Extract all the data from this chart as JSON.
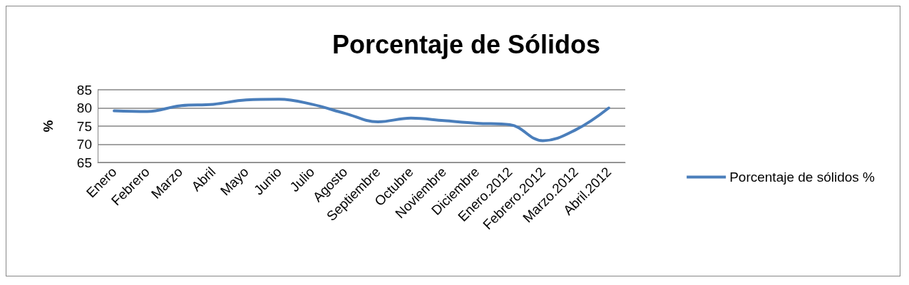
{
  "chart_data": {
    "type": "line",
    "title": "Porcentaje de Sólidos",
    "ylabel": "%",
    "categories": [
      "Enero",
      "Febrero",
      "Marzo",
      "Abril",
      "Mayo",
      "Junio",
      "Julio",
      "Agosto",
      "Septiembre",
      "Octubre",
      "Noviembre",
      "Diciembre",
      "Enero.2012",
      "Febrero.2012",
      "Marzo.2012",
      "Abril.2012"
    ],
    "series": [
      {
        "name": "Porcentaje de sólidos %",
        "color": "#4a7ebb",
        "values": [
          79.2,
          79.0,
          80.6,
          81.0,
          82.2,
          82.4,
          81.0,
          78.5,
          76.2,
          77.2,
          76.5,
          75.8,
          75.4,
          71.0,
          74.0,
          80.0
        ]
      }
    ],
    "ylim": [
      65,
      85
    ],
    "yticks": [
      65,
      70,
      75,
      80,
      85
    ],
    "grid": "y",
    "legend": "right",
    "marker": "none",
    "line_style": "solid"
  }
}
